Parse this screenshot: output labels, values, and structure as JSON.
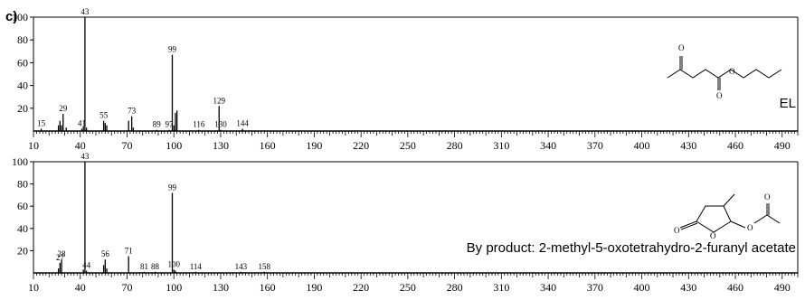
{
  "panel_label": "c)",
  "chart_data": [
    {
      "type": "bar",
      "title": "",
      "xlabel": "",
      "ylabel": "",
      "compound_label": "EL",
      "xlim": [
        10,
        500
      ],
      "ylim": [
        0,
        100
      ],
      "x_ticks": [
        10,
        40,
        70,
        100,
        130,
        160,
        190,
        220,
        250,
        280,
        310,
        340,
        370,
        400,
        430,
        460,
        490
      ],
      "y_ticks": [
        20,
        40,
        60,
        80,
        100
      ],
      "peaks": [
        {
          "mz": 15,
          "intensity": 2,
          "label": "15"
        },
        {
          "mz": 26,
          "intensity": 5,
          "label": ""
        },
        {
          "mz": 27,
          "intensity": 9,
          "label": ""
        },
        {
          "mz": 28,
          "intensity": 5,
          "label": ""
        },
        {
          "mz": 29,
          "intensity": 15,
          "label": "29"
        },
        {
          "mz": 31,
          "intensity": 3,
          "label": ""
        },
        {
          "mz": 41,
          "intensity": 2,
          "label": "41"
        },
        {
          "mz": 42,
          "intensity": 4,
          "label": ""
        },
        {
          "mz": 43,
          "intensity": 100,
          "label": "43"
        },
        {
          "mz": 44,
          "intensity": 3,
          "label": ""
        },
        {
          "mz": 55,
          "intensity": 9,
          "label": "55"
        },
        {
          "mz": 56,
          "intensity": 7,
          "label": ""
        },
        {
          "mz": 57,
          "intensity": 5,
          "label": ""
        },
        {
          "mz": 71,
          "intensity": 9,
          "label": ""
        },
        {
          "mz": 73,
          "intensity": 13,
          "label": "73"
        },
        {
          "mz": 74,
          "intensity": 3,
          "label": ""
        },
        {
          "mz": 89,
          "intensity": 1,
          "label": "89"
        },
        {
          "mz": 97,
          "intensity": 1,
          "label": "97"
        },
        {
          "mz": 99,
          "intensity": 67,
          "label": "99"
        },
        {
          "mz": 100,
          "intensity": 5,
          "label": ""
        },
        {
          "mz": 101,
          "intensity": 16,
          "label": ""
        },
        {
          "mz": 102,
          "intensity": 18,
          "label": ""
        },
        {
          "mz": 116,
          "intensity": 1,
          "label": "116"
        },
        {
          "mz": 129,
          "intensity": 22,
          "label": "129"
        },
        {
          "mz": 130,
          "intensity": 1,
          "label": "130"
        },
        {
          "mz": 144,
          "intensity": 2,
          "label": "144"
        }
      ]
    },
    {
      "type": "bar",
      "title": "",
      "xlabel": "",
      "ylabel": "",
      "compound_label": "By product: 2-methyl-5-oxotetrahydro-2-furanyl acetate",
      "xlim": [
        10,
        500
      ],
      "ylim": [
        0,
        100
      ],
      "x_ticks": [
        10,
        40,
        70,
        100,
        130,
        160,
        190,
        220,
        250,
        280,
        310,
        340,
        370,
        400,
        430,
        460,
        490
      ],
      "y_ticks": [
        20,
        40,
        60,
        80,
        100
      ],
      "peaks": [
        {
          "mz": 26,
          "intensity": 4,
          "label": ""
        },
        {
          "mz": 27,
          "intensity": 9,
          "label": "27"
        },
        {
          "mz": 28,
          "intensity": 12,
          "label": "28"
        },
        {
          "mz": 42,
          "intensity": 3,
          "label": ""
        },
        {
          "mz": 43,
          "intensity": 100,
          "label": "43"
        },
        {
          "mz": 44,
          "intensity": 2,
          "label": "44"
        },
        {
          "mz": 55,
          "intensity": 7,
          "label": ""
        },
        {
          "mz": 56,
          "intensity": 12,
          "label": "56"
        },
        {
          "mz": 57,
          "intensity": 4,
          "label": ""
        },
        {
          "mz": 71,
          "intensity": 15,
          "label": "71"
        },
        {
          "mz": 81,
          "intensity": 1,
          "label": "81"
        },
        {
          "mz": 88,
          "intensity": 1,
          "label": "88"
        },
        {
          "mz": 99,
          "intensity": 72,
          "label": "99"
        },
        {
          "mz": 100,
          "intensity": 3,
          "label": "100"
        },
        {
          "mz": 101,
          "intensity": 2,
          "label": ""
        },
        {
          "mz": 114,
          "intensity": 1,
          "label": "114"
        },
        {
          "mz": 143,
          "intensity": 1,
          "label": "143"
        },
        {
          "mz": 158,
          "intensity": 1,
          "label": "158"
        }
      ]
    }
  ]
}
